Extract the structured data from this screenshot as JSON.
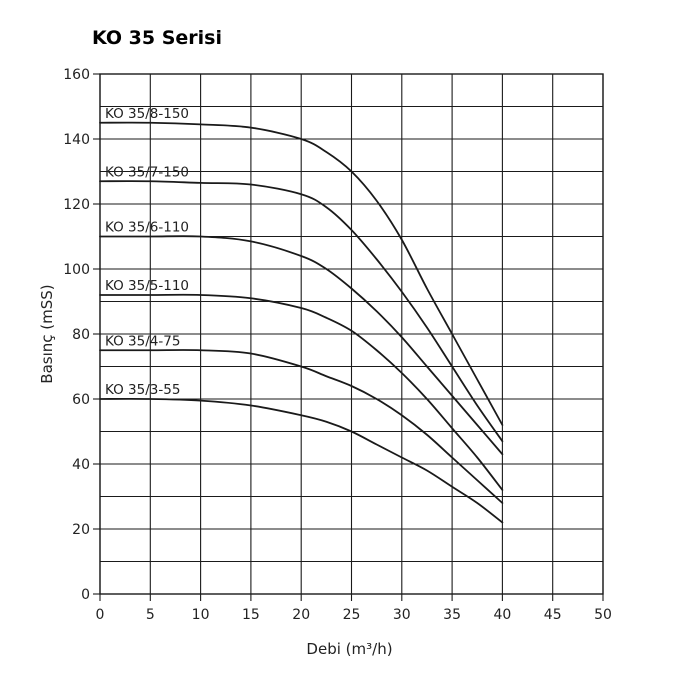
{
  "chart_data": {
    "type": "line",
    "title": "KO 35 Serisi",
    "xlabel": "Debi (m³/h)",
    "ylabel": "Basınç (mSS)",
    "xlim": [
      0,
      50
    ],
    "ylim": [
      0,
      160
    ],
    "x_ticks": [
      0,
      5,
      10,
      15,
      20,
      25,
      30,
      35,
      40,
      45,
      50
    ],
    "y_ticks": [
      0,
      20,
      40,
      60,
      80,
      100,
      120,
      140,
      160
    ],
    "grid": true,
    "legend": "inline",
    "series": [
      {
        "name": "KO 35/8-150",
        "x": [
          0,
          5,
          10,
          15,
          20,
          22.5,
          25,
          27.5,
          30,
          32.5,
          35,
          37.5,
          40
        ],
        "y": [
          145,
          145,
          144.5,
          143.5,
          140,
          136,
          130,
          121,
          109,
          94,
          80,
          66,
          52
        ]
      },
      {
        "name": "KO 35/7-150",
        "x": [
          0,
          5,
          10,
          15,
          20,
          22.5,
          25,
          27.5,
          30,
          32.5,
          35,
          37.5,
          40
        ],
        "y": [
          127,
          127,
          126.5,
          126,
          123,
          119,
          112,
          103,
          93,
          82,
          70,
          58,
          47
        ]
      },
      {
        "name": "KO 35/6-110",
        "x": [
          0,
          5,
          10,
          15,
          20,
          22.5,
          25,
          27.5,
          30,
          32.5,
          35,
          37.5,
          40
        ],
        "y": [
          110,
          110,
          110,
          108.5,
          104,
          100,
          94,
          87,
          79,
          70,
          61,
          52,
          43
        ]
      },
      {
        "name": "KO 35/5-110",
        "x": [
          0,
          5,
          10,
          15,
          20,
          22.5,
          25,
          27.5,
          30,
          32.5,
          35,
          37.5,
          40
        ],
        "y": [
          92,
          92,
          92,
          91,
          88,
          85,
          81,
          75,
          68,
          60,
          51,
          42,
          32
        ]
      },
      {
        "name": "KO 35/4-75",
        "x": [
          0,
          5,
          10,
          15,
          20,
          22.5,
          25,
          27.5,
          30,
          32.5,
          35,
          37.5,
          40
        ],
        "y": [
          75,
          75,
          75,
          74,
          70,
          67,
          64,
          60,
          55,
          49,
          42,
          35,
          28
        ]
      },
      {
        "name": "KO 35/3-55",
        "x": [
          0,
          5,
          10,
          15,
          20,
          22.5,
          25,
          27.5,
          30,
          32.5,
          35,
          37.5,
          40
        ],
        "y": [
          60,
          60,
          59.5,
          58,
          55,
          53,
          50,
          46,
          42,
          38,
          33,
          28,
          22
        ]
      }
    ]
  }
}
